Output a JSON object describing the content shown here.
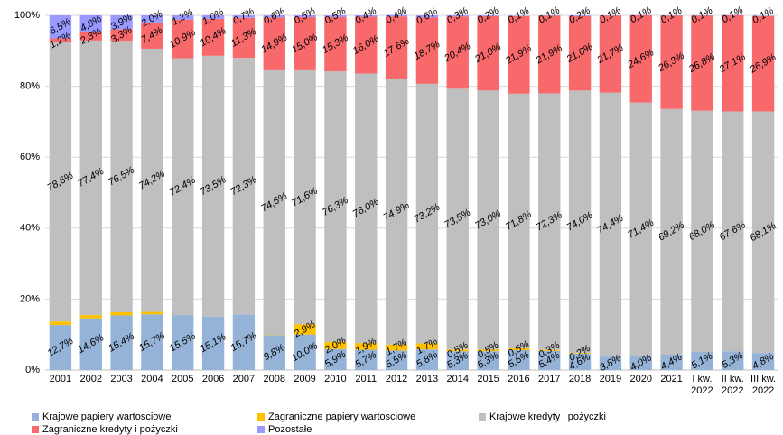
{
  "chart_data": {
    "type": "stacked_bar",
    "categories": [
      "2001",
      "2002",
      "2003",
      "2004",
      "2005",
      "2006",
      "2007",
      "2008",
      "2009",
      "2010",
      "2011",
      "2012",
      "2013",
      "2014",
      "2015",
      "2016",
      "2017",
      "2018",
      "2019",
      "2020",
      "2021",
      "I kw. 2022",
      "II kw. 2022",
      "III kw. 2022"
    ],
    "series": [
      {
        "name": "Krajowe papiery wartosciowe",
        "color": "#95b3d7",
        "values": [
          12.7,
          14.6,
          15.4,
          15.7,
          15.5,
          15.1,
          15.7,
          9.8,
          10.0,
          5.9,
          5.7,
          5.5,
          5.8,
          5.3,
          5.3,
          5.6,
          5.4,
          4.6,
          3.8,
          4.0,
          4.4,
          5.1,
          5.3,
          4.8
        ],
        "value_labels": [
          "12,7%",
          "14,6%",
          "15,4%",
          "15,7%",
          "15,5%",
          "15,1%",
          "15,7%",
          "9,8%",
          "10,0%",
          "5,9%",
          "5,7%",
          "5,5%",
          "5,8%",
          "5,3%",
          "5,3%",
          "5,6%",
          "5,4%",
          "4,6%",
          "3,8%",
          "4,0%",
          "4,4%",
          "5,1%",
          "5,3%",
          "4,8%"
        ]
      },
      {
        "name": "Zagraniczne papiery wartosciowe",
        "color": "#ffc000",
        "values": [
          1.0,
          0.9,
          0.9,
          0.7,
          0,
          0,
          0,
          0.1,
          2.9,
          2.0,
          1.9,
          1.7,
          1.7,
          0.5,
          0.5,
          0.5,
          0.3,
          0.2,
          0,
          0,
          0,
          0,
          0,
          0
        ],
        "value_labels": [
          null,
          null,
          null,
          null,
          null,
          null,
          null,
          null,
          "2,9%",
          "2,0%",
          "1,9%",
          "1,7%",
          "1,7%",
          "0,5%",
          "0,5%",
          "0,5%",
          "0,3%",
          "0,2%",
          null,
          null,
          null,
          null,
          null,
          null
        ]
      },
      {
        "name": "Krajowe kredyty i pożyczki",
        "color": "#bfbfbf",
        "values": [
          78.6,
          77.4,
          76.5,
          74.2,
          72.4,
          73.5,
          72.3,
          74.6,
          71.6,
          76.3,
          76.0,
          74.9,
          73.2,
          73.5,
          73.0,
          71.8,
          72.3,
          74.0,
          74.4,
          71.4,
          69.2,
          68.0,
          67.6,
          68.1
        ],
        "value_labels": [
          "78,6%",
          "77,4%",
          "76,5%",
          "74,2%",
          "72,4%",
          "73,5%",
          "72,3%",
          "74,6%",
          "71,6%",
          "76,3%",
          "76,0%",
          "74,9%",
          "73,2%",
          "73,5%",
          "73,0%",
          "71,8%",
          "72,3%",
          "74,0%",
          "74,4%",
          "71,4%",
          "69,2%",
          "68,0%",
          "67,6%",
          "68,1%"
        ]
      },
      {
        "name": "Zagraniczne kredyty i pożyczki",
        "color": "#f8696b",
        "values": [
          1.2,
          2.3,
          3.3,
          7.4,
          10.9,
          10.4,
          11.3,
          14.9,
          15.0,
          15.3,
          16.0,
          17.6,
          18.7,
          20.4,
          21.0,
          21.9,
          21.9,
          21.0,
          21.7,
          24.6,
          26.3,
          26.8,
          27.1,
          26.9
        ],
        "value_labels": [
          "1,2%",
          "2,3%",
          "3,3%",
          "7,4%",
          "10,9%",
          "10,4%",
          "11,3%",
          "14,9%",
          "15,0%",
          "15,3%",
          "16,0%",
          "17,6%",
          "18,7%",
          "20,4%",
          "21,0%",
          "21,9%",
          "21,9%",
          "21,0%",
          "21,7%",
          "24,6%",
          "26,3%",
          "26,8%",
          "27,1%",
          "26,9%"
        ]
      },
      {
        "name": "Pozostałe",
        "color": "#9999ff",
        "values": [
          6.5,
          4.8,
          3.9,
          2.0,
          1.2,
          1.0,
          0.7,
          0.6,
          0.5,
          0.5,
          0.4,
          0.4,
          0.6,
          0.3,
          0.2,
          0.1,
          0.1,
          0.2,
          0.1,
          0.1,
          0.1,
          0.1,
          0.1,
          0.1
        ],
        "value_labels": [
          "6,5%",
          "4,8%",
          "3,9%",
          "2,0%",
          "1,2%",
          "1,0%",
          "0,7%",
          "0,6%",
          "0,5%",
          "0,5%",
          "0,4%",
          "0,4%",
          "0,6%",
          "0,3%",
          "0,2%",
          "0,1%",
          "0,1%",
          "0,2%",
          "0,1%",
          "0,1%",
          "0,1%",
          "0,1%",
          "0,1%",
          "0,1%"
        ]
      }
    ],
    "ylim": [
      0,
      100
    ],
    "yticks": [
      {
        "value": 0,
        "label": "0%"
      },
      {
        "value": 20,
        "label": "20%"
      },
      {
        "value": 40,
        "label": "40%"
      },
      {
        "value": 60,
        "label": "60%"
      },
      {
        "value": 80,
        "label": "80%"
      },
      {
        "value": 100,
        "label": "100%"
      }
    ],
    "grid": true
  }
}
